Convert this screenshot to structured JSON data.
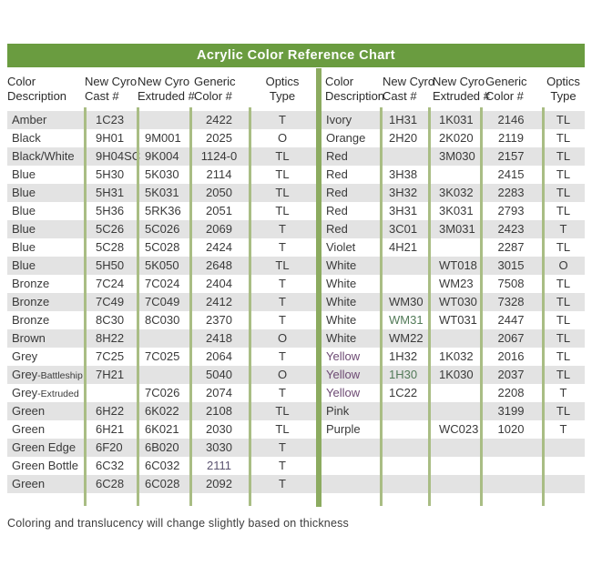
{
  "title": "Acrylic Color Reference Chart",
  "footer_note": "Coloring and translucency will change slightly based on thickness",
  "columns": [
    {
      "line1": "Color",
      "line2": "Description"
    },
    {
      "line1": "New Cyro",
      "line2": "Cast #"
    },
    {
      "line1": "New Cyro",
      "line2": "Extruded #"
    },
    {
      "line1": "Generic",
      "line2": "Color #"
    },
    {
      "line1": "Optics",
      "line2": "Type"
    }
  ],
  "left_table": {
    "rows": [
      {
        "desc": "Amber",
        "cast": "1C23",
        "ext": "",
        "gen": "2422",
        "opt": "T"
      },
      {
        "desc": "Black",
        "cast": "9H01",
        "ext": "9M001",
        "gen": "2025",
        "opt": "O"
      },
      {
        "desc": "Black/White",
        "cast": "9H04SC",
        "ext": "9K004",
        "gen": "1124-0",
        "opt": "TL"
      },
      {
        "desc": "Blue",
        "cast": "5H30",
        "ext": "5K030",
        "gen": "2114",
        "opt": "TL"
      },
      {
        "desc": "Blue",
        "cast": "5H31",
        "ext": "5K031",
        "gen": "2050",
        "opt": "TL"
      },
      {
        "desc": "Blue",
        "cast": "5H36",
        "ext": "5RK36",
        "gen": "2051",
        "opt": "TL"
      },
      {
        "desc": "Blue",
        "cast": "5C26",
        "ext": "5C026",
        "gen": "2069",
        "opt": "T"
      },
      {
        "desc": "Blue",
        "cast": "5C28",
        "ext": "5C028",
        "gen": "2424",
        "opt": "T"
      },
      {
        "desc": "Blue",
        "cast": "5H50",
        "ext": "5K050",
        "gen": "2648",
        "opt": "TL"
      },
      {
        "desc": "Bronze",
        "cast": "7C24",
        "ext": "7C024",
        "gen": "2404",
        "opt": "T"
      },
      {
        "desc": "Bronze",
        "cast": "7C49",
        "ext": "7C049",
        "gen": "2412",
        "opt": "T"
      },
      {
        "desc": "Bronze",
        "cast": "8C30",
        "ext": "8C030",
        "gen": "2370",
        "opt": "T"
      },
      {
        "desc": "Brown",
        "cast": "8H22",
        "ext": "",
        "gen": "2418",
        "opt": "O"
      },
      {
        "desc": "Grey",
        "cast": "7C25",
        "ext": "7C025",
        "gen": "2064",
        "opt": "T"
      },
      {
        "desc": "Grey",
        "desc_small": "-Battleship",
        "cast": "7H21",
        "ext": "",
        "gen": "5040",
        "opt": "O"
      },
      {
        "desc": "Grey",
        "desc_small": "-Extruded",
        "cast": "",
        "ext": "7C026",
        "gen": "2074",
        "opt": "T"
      },
      {
        "desc": "Green",
        "cast": "6H22",
        "ext": "6K022",
        "gen": "2108",
        "opt": "TL"
      },
      {
        "desc": "Green",
        "cast": "6H21",
        "ext": "6K021",
        "gen": "2030",
        "opt": "TL"
      },
      {
        "desc": "Green Edge",
        "cast": "6F20",
        "ext": "6B020",
        "gen": "3030",
        "opt": "T"
      },
      {
        "desc": "Green Bottle",
        "cast": "6C32",
        "ext": "6C032",
        "gen": "2111",
        "opt": "T",
        "fx": {
          "gen": "accent_slate"
        }
      },
      {
        "desc": "Green",
        "cast": "6C28",
        "ext": "6C028",
        "gen": "2092",
        "opt": "T"
      }
    ],
    "empty_trailing_rows": 0
  },
  "right_table": {
    "rows": [
      {
        "desc": "Ivory",
        "cast": "1H31",
        "ext": "1K031",
        "gen": "2146",
        "opt": "TL"
      },
      {
        "desc": "Orange",
        "cast": "2H20",
        "ext": "2K020",
        "gen": "2119",
        "opt": "TL"
      },
      {
        "desc": "Red",
        "cast": "",
        "ext": "3M030",
        "gen": "2157",
        "opt": "TL"
      },
      {
        "desc": "Red",
        "cast": "3H38",
        "ext": "",
        "gen": "2415",
        "opt": "TL"
      },
      {
        "desc": "Red",
        "cast": "3H32",
        "ext": "3K032",
        "gen": "2283",
        "opt": "TL"
      },
      {
        "desc": "Red",
        "cast": "3H31",
        "ext": "3K031",
        "gen": "2793",
        "opt": "TL"
      },
      {
        "desc": "Red",
        "cast": "3C01",
        "ext": "3M031",
        "gen": "2423",
        "opt": "T"
      },
      {
        "desc": "Violet",
        "cast": "4H21",
        "ext": "",
        "gen": "2287",
        "opt": "TL"
      },
      {
        "desc": "White",
        "cast": "",
        "ext": "WT018",
        "gen": "3015",
        "opt": "O"
      },
      {
        "desc": "White",
        "cast": "",
        "ext": "WM23",
        "gen": "7508",
        "opt": "TL"
      },
      {
        "desc": "White",
        "cast": "WM30",
        "ext": "WT030",
        "gen": "7328",
        "opt": "TL"
      },
      {
        "desc": "White",
        "cast": "WM31",
        "ext": "WT031",
        "gen": "2447",
        "opt": "TL",
        "fx": {
          "cast": "accent_green"
        }
      },
      {
        "desc": "White",
        "cast": "WM22",
        "ext": "",
        "gen": "2067",
        "opt": "TL"
      },
      {
        "desc": "Yellow",
        "cast": "1H32",
        "ext": "1K032",
        "gen": "2016",
        "opt": "TL",
        "fx": {
          "desc": "accent_purple"
        }
      },
      {
        "desc": "Yellow",
        "cast": "1H30",
        "ext": "1K030",
        "gen": "2037",
        "opt": "TL",
        "fx": {
          "desc": "accent_purple",
          "cast": "accent_green"
        }
      },
      {
        "desc": "Yellow",
        "cast": "1C22",
        "ext": "",
        "gen": "2208",
        "opt": "T",
        "fx": {
          "desc": "accent_purple"
        }
      },
      {
        "desc": "Pink",
        "cast": "",
        "ext": "",
        "gen": "3199",
        "opt": "TL"
      },
      {
        "desc": "Purple",
        "cast": "",
        "ext": "WC023",
        "gen": "1020",
        "opt": "T"
      }
    ],
    "empty_trailing_rows": 3
  },
  "colors": {
    "title_bar_green": "#6a9c40",
    "mid_divider_green": "#8cab60",
    "column_divider_sage": "#a9bd84",
    "row_stripe_grey": "#e3e3e3",
    "text_dark": "#3a3a3a",
    "accent_purple": "#6d4a73",
    "accent_green": "#527a58",
    "accent_slate": "#5b5370"
  }
}
